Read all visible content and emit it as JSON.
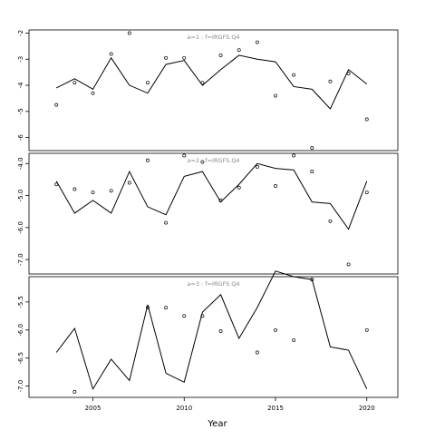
{
  "chart_data": [
    {
      "type": "line",
      "panel_label": "a=1  :  f=IRGFS.Q4",
      "xlim": [
        2001.5,
        2021.7
      ],
      "ylim": [
        -6.5,
        -1.88
      ],
      "yticks": [
        -2,
        -3,
        -4,
        -5,
        -6
      ],
      "ytick_labels": [
        "-2",
        "-3",
        "-4",
        "-5",
        "-6"
      ],
      "series": [
        {
          "style": "line",
          "x": [
            2003,
            2004,
            2005,
            2006,
            2007,
            2008,
            2009,
            2010,
            2011,
            2012,
            2013,
            2014,
            2015,
            2016,
            2017,
            2018,
            2019,
            2020
          ],
          "values": [
            -4.1,
            -3.75,
            -4.15,
            -2.95,
            -4.0,
            -4.3,
            -3.2,
            -3.05,
            -4.0,
            -3.4,
            -2.85,
            -3.0,
            -3.1,
            -4.05,
            -4.15,
            -4.9,
            -3.4,
            -3.95
          ]
        },
        {
          "style": "points",
          "x": [
            2003,
            2004,
            2005,
            2006,
            2007,
            2008,
            2009,
            2010,
            2011,
            2012,
            2013,
            2014,
            2015,
            2016,
            2017,
            2018,
            2019,
            2020
          ],
          "values": [
            -4.75,
            -3.9,
            -4.3,
            -2.8,
            -2.0,
            -3.9,
            -2.95,
            -2.95,
            -3.9,
            -2.85,
            -2.65,
            -2.35,
            -4.4,
            -3.6,
            -6.4,
            -3.85,
            -3.55,
            -5.3
          ]
        }
      ]
    },
    {
      "type": "line",
      "panel_label": "a=2  :  f=IRGFS.Q4",
      "xlim": [
        2001.5,
        2021.7
      ],
      "ylim": [
        -7.45,
        -3.68
      ],
      "yticks": [
        -4.0,
        -5.0,
        -6.0,
        -7.0
      ],
      "ytick_labels": [
        "-4.0",
        "-5.0",
        "-6.0",
        "-7.0"
      ],
      "series": [
        {
          "style": "line",
          "x": [
            2003,
            2004,
            2005,
            2006,
            2007,
            2008,
            2009,
            2010,
            2011,
            2012,
            2013,
            2014,
            2015,
            2016,
            2017,
            2018,
            2019,
            2020
          ],
          "values": [
            -4.55,
            -5.55,
            -5.15,
            -5.55,
            -4.25,
            -5.35,
            -5.6,
            -4.4,
            -4.25,
            -5.2,
            -4.65,
            -4.0,
            -4.15,
            -4.2,
            -5.2,
            -5.25,
            -6.05,
            -4.55
          ]
        },
        {
          "style": "points",
          "x": [
            2003,
            2004,
            2005,
            2006,
            2007,
            2008,
            2009,
            2010,
            2011,
            2012,
            2013,
            2014,
            2015,
            2016,
            2017,
            2018,
            2019,
            2020
          ],
          "values": [
            -4.65,
            -4.8,
            -4.9,
            -4.85,
            -4.6,
            -3.9,
            -5.85,
            -3.75,
            -3.95,
            -5.15,
            -4.75,
            -4.1,
            -4.7,
            -3.75,
            -4.25,
            -5.8,
            -7.15,
            -4.9
          ]
        }
      ]
    },
    {
      "type": "line",
      "panel_label": "a=3  :  f=IRGFS.Q4",
      "xlim": [
        2001.5,
        2021.7
      ],
      "ylim": [
        -7.2,
        -5.05
      ],
      "yticks": [
        -5.5,
        -6.0,
        -6.5,
        -7.0
      ],
      "ytick_labels": [
        "-5.5",
        "-6.0",
        "-6.5",
        "-7.0"
      ],
      "series": [
        {
          "style": "line",
          "x": [
            2003,
            2004,
            2005,
            2006,
            2007,
            2008,
            2009,
            2010,
            2011,
            2012,
            2013,
            2014,
            2015,
            2016,
            2017,
            2018,
            2019,
            2020
          ],
          "values": [
            -6.4,
            -5.97,
            -7.05,
            -6.52,
            -6.9,
            -5.55,
            -6.77,
            -6.93,
            -5.68,
            -5.37,
            -6.15,
            -5.6,
            -4.95,
            -5.05,
            -5.1,
            -6.3,
            -6.36,
            -7.05
          ]
        },
        {
          "style": "points",
          "x": [
            2004,
            2008,
            2009,
            2010,
            2011,
            2012,
            2014,
            2015,
            2016,
            2017,
            2020
          ],
          "values": [
            -7.1,
            -5.6,
            -5.6,
            -5.75,
            -5.75,
            -6.02,
            -6.4,
            -6.0,
            -6.18,
            -5.1,
            -6.0
          ]
        }
      ]
    }
  ],
  "x_axis": {
    "ticks": [
      2005,
      2010,
      2015,
      2020
    ],
    "tick_labels": [
      "2005",
      "2010",
      "2015",
      "2020"
    ],
    "label": "Year"
  }
}
